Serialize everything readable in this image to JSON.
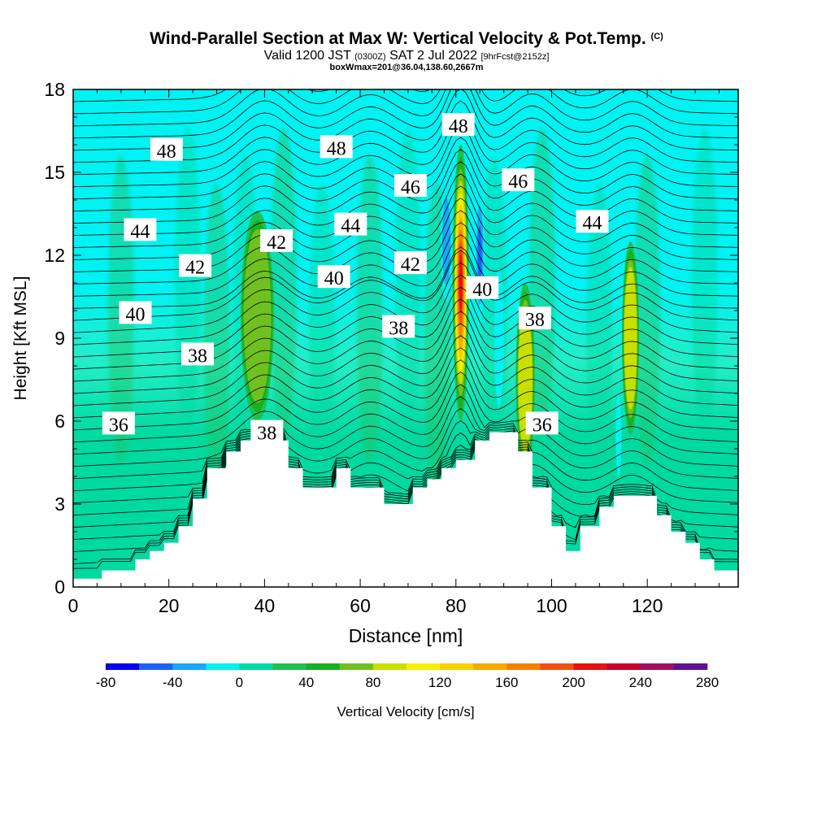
{
  "header": {
    "title_main": "Wind-Parallel Section at Max W: Vertical Velocity & Pot.Temp.",
    "title_mark": "(C)",
    "valid_prefix": "Valid 1200 JST",
    "valid_utc": "(0300Z)",
    "valid_date": "SAT 2 Jul 2022",
    "valid_fcst": "[9hrFcst@2152z]",
    "box_info": "boxWmax=201@36.04,138.60,2667m"
  },
  "chart_data": {
    "type": "heatmap",
    "xlabel": "Distance [nm]",
    "ylabel": "Height [Kft MSL]",
    "xlim": [
      0,
      139
    ],
    "ylim": [
      0,
      18
    ],
    "x_ticks": [
      0,
      20,
      40,
      60,
      80,
      100,
      120
    ],
    "y_ticks": [
      0,
      3,
      6,
      9,
      12,
      15,
      18
    ],
    "colorbar": {
      "label": "Vertical Velocity [cm/s]",
      "tick_values": [
        -80,
        -40,
        0,
        40,
        80,
        120,
        160,
        200,
        240,
        280
      ],
      "levels": [
        -80,
        -60,
        -40,
        -20,
        0,
        20,
        40,
        60,
        80,
        100,
        120,
        140,
        160,
        180,
        200,
        220,
        240,
        260,
        280
      ],
      "colors": [
        "#0000ee",
        "#1e60f5",
        "#1da6f5",
        "#00f2f2",
        "#00d9a0",
        "#20c050",
        "#18b020",
        "#70c020",
        "#c8e000",
        "#f5f000",
        "#f8d000",
        "#f8a800",
        "#f48000",
        "#f05010",
        "#e81010",
        "#c8002a",
        "#a01060",
        "#601090"
      ]
    },
    "terrain_kft": [
      [
        0,
        0.3
      ],
      [
        6,
        0.3
      ],
      [
        6,
        0.6
      ],
      [
        13,
        0.6
      ],
      [
        13,
        1.0
      ],
      [
        16,
        1.0
      ],
      [
        16,
        1.3
      ],
      [
        19,
        1.3
      ],
      [
        19,
        1.6
      ],
      [
        22,
        1.6
      ],
      [
        22,
        2.2
      ],
      [
        25,
        2.2
      ],
      [
        25,
        3.2
      ],
      [
        28,
        3.2
      ],
      [
        28,
        4.3
      ],
      [
        32,
        4.3
      ],
      [
        32,
        4.9
      ],
      [
        35,
        4.9
      ],
      [
        35,
        5.3
      ],
      [
        45,
        5.3
      ],
      [
        45,
        4.3
      ],
      [
        48,
        4.3
      ],
      [
        48,
        3.6
      ],
      [
        55,
        3.6
      ],
      [
        55,
        4.3
      ],
      [
        58,
        4.3
      ],
      [
        58,
        3.6
      ],
      [
        65,
        3.6
      ],
      [
        65,
        3.0
      ],
      [
        71,
        3.0
      ],
      [
        71,
        3.6
      ],
      [
        74,
        3.6
      ],
      [
        74,
        3.9
      ],
      [
        77,
        3.9
      ],
      [
        77,
        4.3
      ],
      [
        80,
        4.3
      ],
      [
        80,
        4.6
      ],
      [
        84,
        4.6
      ],
      [
        84,
        5.3
      ],
      [
        87,
        5.3
      ],
      [
        87,
        5.6
      ],
      [
        93,
        5.6
      ],
      [
        93,
        4.9
      ],
      [
        96,
        4.9
      ],
      [
        96,
        3.6
      ],
      [
        100,
        3.6
      ],
      [
        100,
        2.2
      ],
      [
        103,
        2.2
      ],
      [
        103,
        1.3
      ],
      [
        106,
        1.3
      ],
      [
        106,
        2.2
      ],
      [
        110,
        2.2
      ],
      [
        110,
        2.9
      ],
      [
        113,
        2.9
      ],
      [
        113,
        3.3
      ],
      [
        122,
        3.3
      ],
      [
        122,
        2.6
      ],
      [
        125,
        2.6
      ],
      [
        125,
        2.0
      ],
      [
        128,
        2.0
      ],
      [
        128,
        1.6
      ],
      [
        131,
        1.6
      ],
      [
        131,
        1.0
      ],
      [
        134,
        1.0
      ],
      [
        134,
        0.6
      ],
      [
        139,
        0.6
      ]
    ],
    "updrafts": [
      {
        "x": 38.5,
        "y": 9.8,
        "w": 3.5,
        "h": 3.8,
        "value": 70
      },
      {
        "x": 94.5,
        "y": 7.5,
        "w": 2.0,
        "h": 3.5,
        "value": 80
      },
      {
        "x": 116.5,
        "y": 9.0,
        "w": 1.8,
        "h": 3.5,
        "value": 90
      },
      {
        "x": 81.0,
        "y": 11.0,
        "w": 1.7,
        "h": 5.0,
        "value": 201
      }
    ],
    "downdrafts": [
      {
        "x": 78.0,
        "y": 12.5,
        "w": 1.2,
        "h": 2.2,
        "value": -45
      },
      {
        "x": 85.0,
        "y": 12.0,
        "w": 1.0,
        "h": 2.5,
        "value": -60
      },
      {
        "x": 89.0,
        "y": 9.0,
        "w": 1.0,
        "h": 2.5,
        "value": -35
      },
      {
        "x": 92.0,
        "y": 13.5,
        "w": 1.0,
        "h": 1.5,
        "value": -30
      },
      {
        "x": 114.0,
        "y": 5.5,
        "w": 0.6,
        "h": 1.5,
        "value": -30
      }
    ],
    "theta_labels": [
      {
        "text": "48",
        "x": 19.5,
        "y": 15.8
      },
      {
        "text": "48",
        "x": 55.0,
        "y": 15.9
      },
      {
        "text": "48",
        "x": 80.5,
        "y": 16.7
      },
      {
        "text": "46",
        "x": 70.5,
        "y": 14.5
      },
      {
        "text": "46",
        "x": 93.0,
        "y": 14.7
      },
      {
        "text": "44",
        "x": 14.0,
        "y": 12.9
      },
      {
        "text": "44",
        "x": 58.0,
        "y": 13.1
      },
      {
        "text": "44",
        "x": 108.5,
        "y": 13.2
      },
      {
        "text": "42",
        "x": 25.5,
        "y": 11.6
      },
      {
        "text": "42",
        "x": 42.5,
        "y": 12.5
      },
      {
        "text": "42",
        "x": 70.5,
        "y": 11.7
      },
      {
        "text": "40",
        "x": 13.0,
        "y": 9.9
      },
      {
        "text": "40",
        "x": 54.5,
        "y": 11.2
      },
      {
        "text": "40",
        "x": 85.5,
        "y": 10.8
      },
      {
        "text": "38",
        "x": 26.0,
        "y": 8.4
      },
      {
        "text": "38",
        "x": 68.0,
        "y": 9.4
      },
      {
        "text": "38",
        "x": 96.5,
        "y": 9.7
      },
      {
        "text": "38",
        "x": 40.5,
        "y": 5.6
      },
      {
        "text": "36",
        "x": 9.5,
        "y": 5.9
      },
      {
        "text": "36",
        "x": 98.0,
        "y": 5.9
      }
    ]
  }
}
